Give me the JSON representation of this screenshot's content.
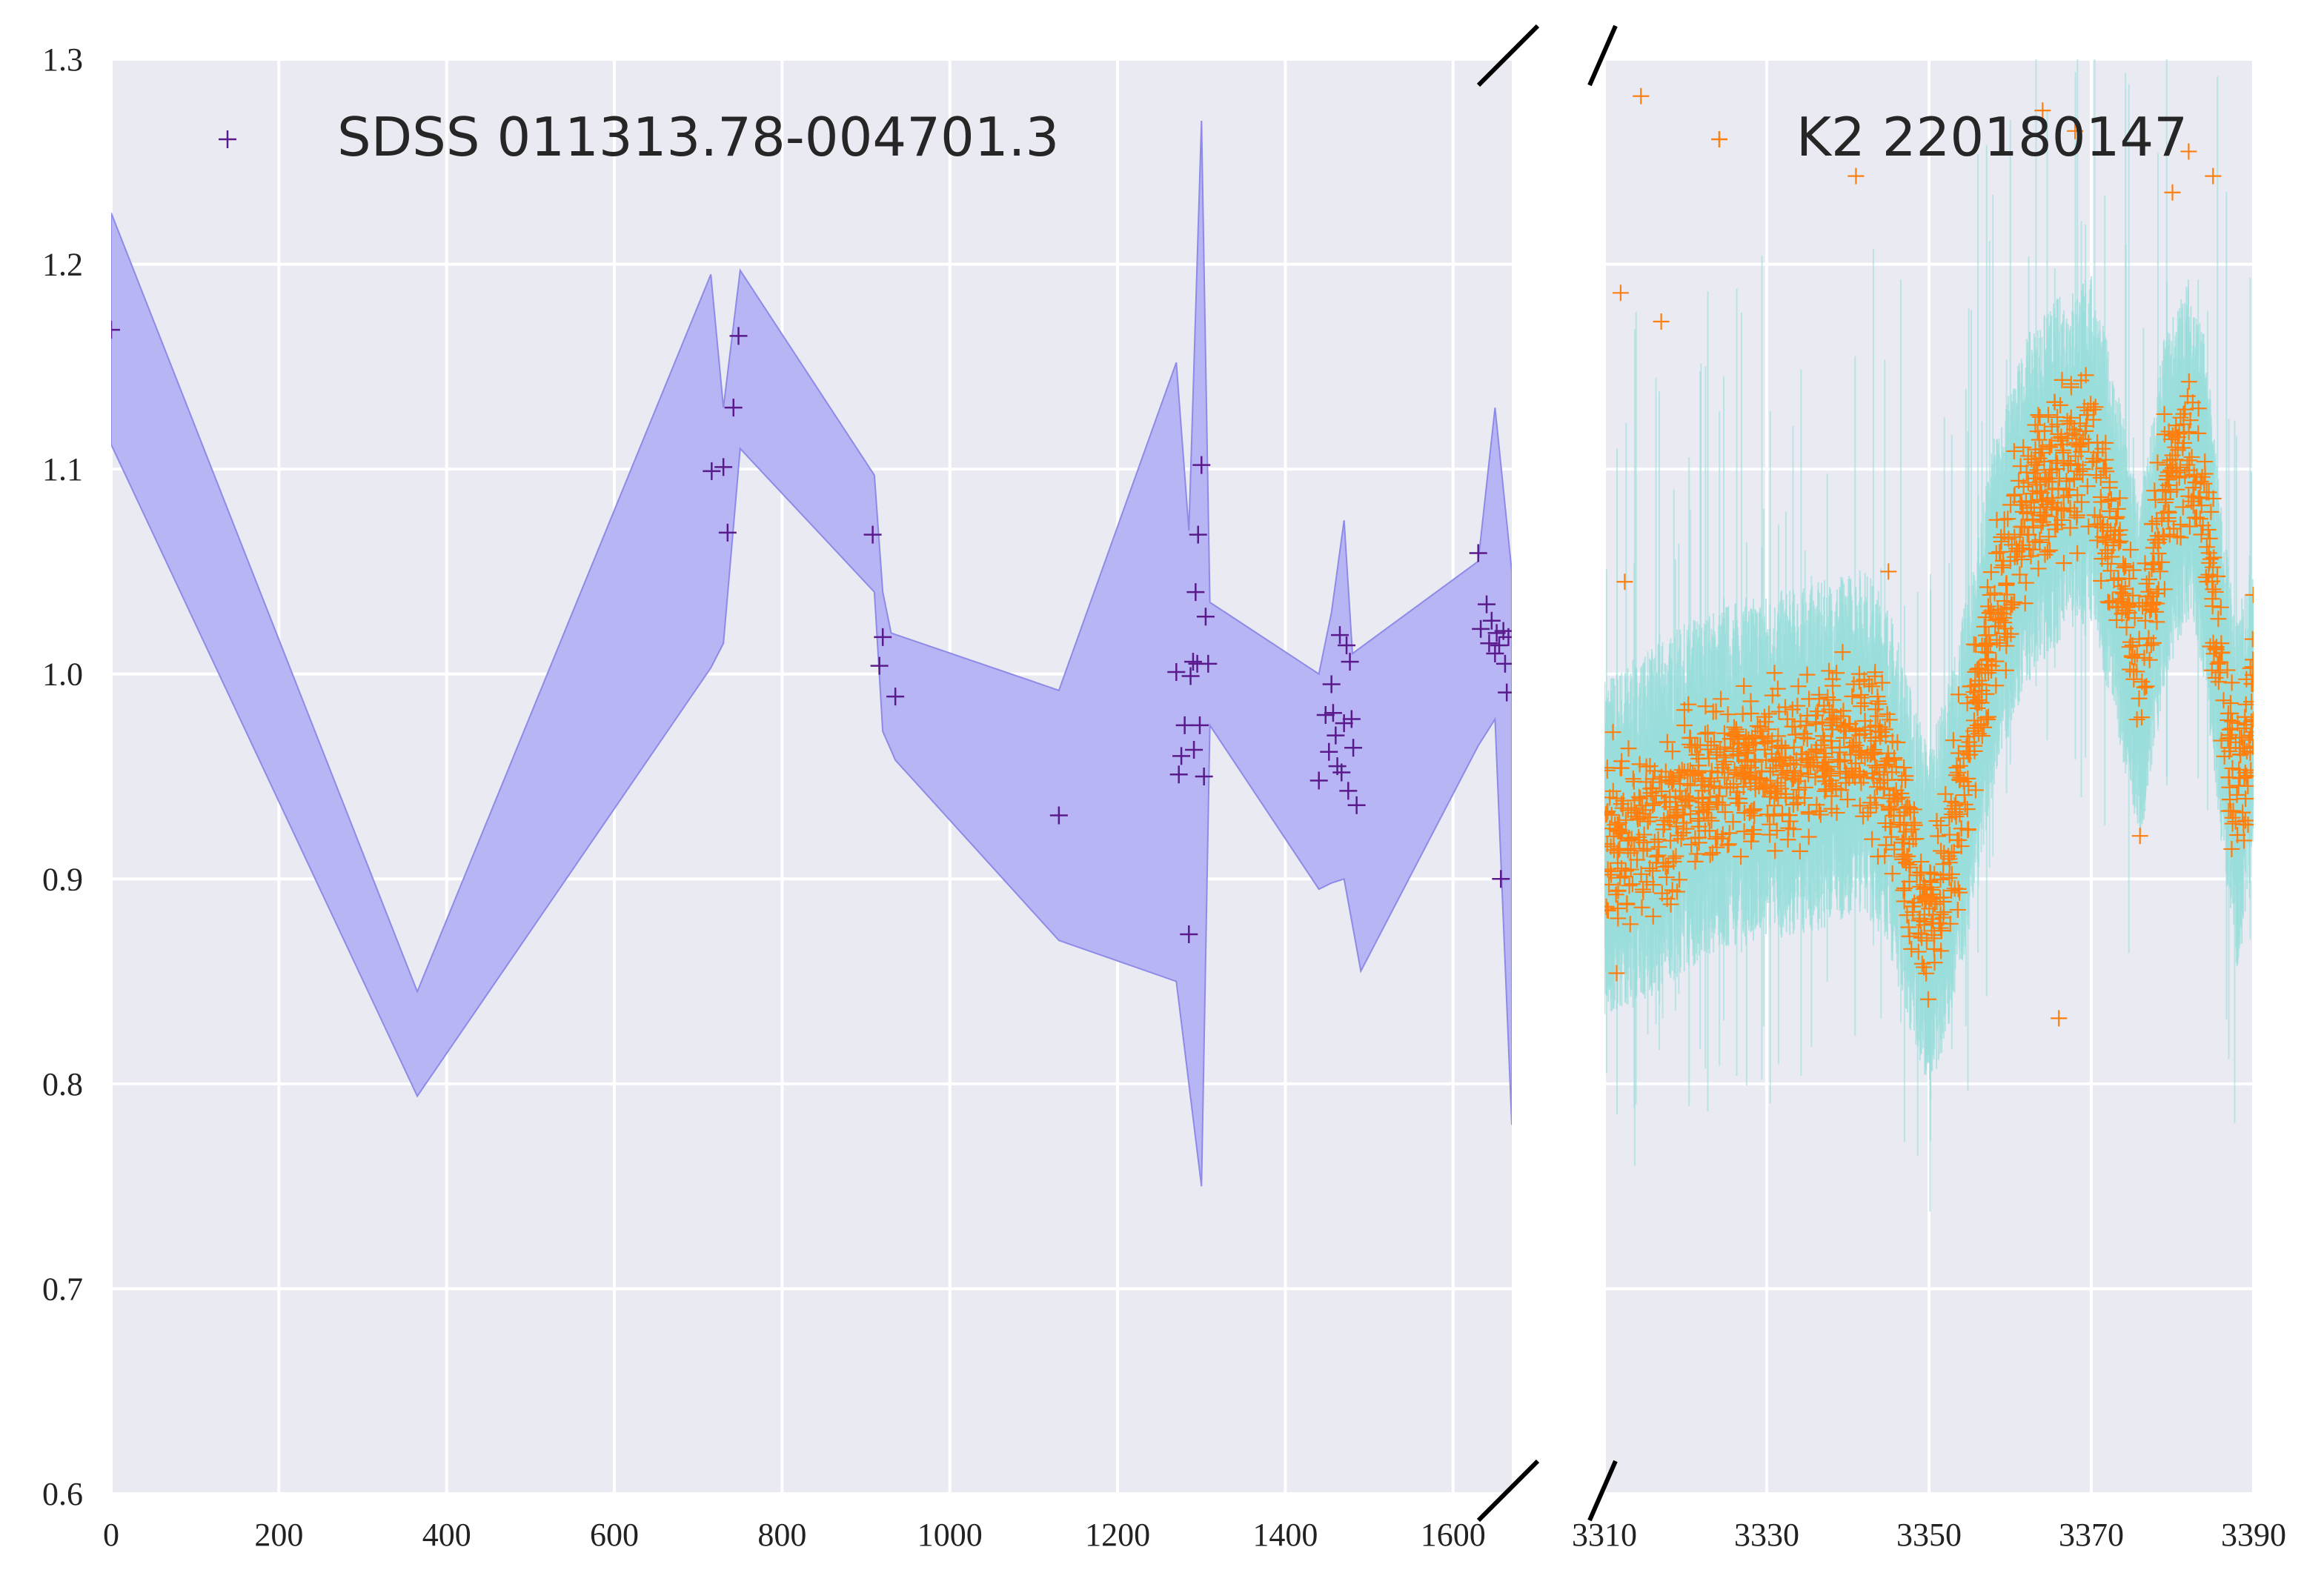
{
  "chart_data": {
    "type": "scatter",
    "ylim": [
      0.6,
      1.3
    ],
    "yticks": [
      "0.6",
      "0.7",
      "0.8",
      "0.9",
      "1.0",
      "1.1",
      "1.2",
      "1.3"
    ],
    "grid": true,
    "axis_break": true,
    "panels": [
      {
        "id": "left",
        "xlim": [
          0,
          1670
        ],
        "xticks": [
          "0",
          "200",
          "400",
          "600",
          "800",
          "1000",
          "1200",
          "1400",
          "1600"
        ],
        "legend": {
          "label": "SDSS 011313.78-004701.3",
          "position": "top-left"
        },
        "series": {
          "name": "SDSS 011313.78-004701.3",
          "marker": "+",
          "color": "#5b1a8c",
          "band_color": "#b7b5f3",
          "band_edge": "#8e8ae8",
          "points": [
            [
              0,
              1.168
            ],
            [
              716,
              1.099
            ],
            [
              730,
              1.101
            ],
            [
              735,
              1.069
            ],
            [
              742,
              1.13
            ],
            [
              748,
              1.165
            ],
            [
              908,
              1.068
            ],
            [
              916,
              1.004
            ],
            [
              920,
              1.018
            ],
            [
              935,
              0.989
            ],
            [
              1130,
              0.931
            ],
            [
              1270,
              1.001
            ],
            [
              1273,
              0.951
            ],
            [
              1276,
              0.96
            ],
            [
              1280,
              0.975
            ],
            [
              1285,
              0.873
            ],
            [
              1287,
              0.999
            ],
            [
              1290,
              1.006
            ],
            [
              1291,
              0.963
            ],
            [
              1293,
              1.04
            ],
            [
              1295,
              1.005
            ],
            [
              1296,
              1.068
            ],
            [
              1298,
              0.975
            ],
            [
              1300,
              1.102
            ],
            [
              1303,
              0.95
            ],
            [
              1305,
              1.028
            ],
            [
              1308,
              1.005
            ],
            [
              1440,
              0.948
            ],
            [
              1448,
              0.98
            ],
            [
              1452,
              0.962
            ],
            [
              1455,
              0.995
            ],
            [
              1457,
              0.981
            ],
            [
              1460,
              0.97
            ],
            [
              1462,
              0.955
            ],
            [
              1465,
              1.019
            ],
            [
              1467,
              0.952
            ],
            [
              1470,
              0.976
            ],
            [
              1473,
              1.014
            ],
            [
              1475,
              0.943
            ],
            [
              1477,
              1.006
            ],
            [
              1479,
              0.978
            ],
            [
              1481,
              0.964
            ],
            [
              1485,
              0.936
            ],
            [
              1630,
              1.059
            ],
            [
              1633,
              1.022
            ],
            [
              1640,
              1.034
            ],
            [
              1643,
              1.015
            ],
            [
              1646,
              1.026
            ],
            [
              1650,
              1.01
            ],
            [
              1652,
              1.02
            ],
            [
              1655,
              1.014
            ],
            [
              1657,
              0.9
            ],
            [
              1660,
              1.021
            ],
            [
              1662,
              1.005
            ],
            [
              1664,
              0.991
            ],
            [
              1666,
              1.018
            ]
          ],
          "band_upper": [
            [
              0,
              1.225
            ],
            [
              365,
              0.845
            ],
            [
              715,
              1.195
            ],
            [
              730,
              1.13
            ],
            [
              750,
              1.197
            ],
            [
              910,
              1.097
            ],
            [
              920,
              1.04
            ],
            [
              930,
              1.02
            ],
            [
              1130,
              0.992
            ],
            [
              1270,
              1.152
            ],
            [
              1285,
              1.07
            ],
            [
              1300,
              1.27
            ],
            [
              1310,
              1.035
            ],
            [
              1440,
              1.0
            ],
            [
              1455,
              1.03
            ],
            [
              1470,
              1.075
            ],
            [
              1480,
              1.01
            ],
            [
              1630,
              1.055
            ],
            [
              1650,
              1.13
            ],
            [
              1670,
              1.05
            ]
          ],
          "band_lower": [
            [
              1670,
              0.78
            ],
            [
              1650,
              0.978
            ],
            [
              1630,
              0.965
            ],
            [
              1490,
              0.855
            ],
            [
              1470,
              0.9
            ],
            [
              1455,
              0.898
            ],
            [
              1440,
              0.895
            ],
            [
              1310,
              0.975
            ],
            [
              1300,
              0.75
            ],
            [
              1285,
              0.8
            ],
            [
              1270,
              0.85
            ],
            [
              1130,
              0.87
            ],
            [
              935,
              0.958
            ],
            [
              920,
              0.972
            ],
            [
              910,
              1.04
            ],
            [
              750,
              1.11
            ],
            [
              730,
              1.015
            ],
            [
              715,
              1.003
            ],
            [
              365,
              0.794
            ],
            [
              0,
              1.112
            ]
          ]
        }
      },
      {
        "id": "right",
        "xlim": [
          3310,
          3390
        ],
        "xticks": [
          "3310",
          "3330",
          "3350",
          "3370",
          "3390"
        ],
        "legend": {
          "label": "K2 220180147",
          "position": "top-right"
        },
        "series": {
          "name": "K2 220180147",
          "marker": "+",
          "color": "#ff7f0e",
          "band_color": "#9adedc",
          "trend": [
            [
              3310,
              0.915
            ],
            [
              3315,
              0.925
            ],
            [
              3320,
              0.94
            ],
            [
              3325,
              0.95
            ],
            [
              3330,
              0.955
            ],
            [
              3335,
              0.958
            ],
            [
              3340,
              0.965
            ],
            [
              3342,
              0.968
            ],
            [
              3345,
              0.95
            ],
            [
              3348,
              0.905
            ],
            [
              3350,
              0.88
            ],
            [
              3352,
              0.905
            ],
            [
              3355,
              0.96
            ],
            [
              3358,
              1.03
            ],
            [
              3362,
              1.08
            ],
            [
              3366,
              1.1
            ],
            [
              3370,
              1.11
            ],
            [
              3373,
              1.06
            ],
            [
              3376,
              1.0
            ],
            [
              3379,
              1.08
            ],
            [
              3382,
              1.11
            ],
            [
              3384,
              1.08
            ],
            [
              3386,
              1.0
            ],
            [
              3388,
              0.94
            ],
            [
              3390,
              0.985
            ]
          ],
          "outliers": [
            [
              3314.5,
              1.282
            ],
            [
              3312,
              1.186
            ],
            [
              3317,
              1.172
            ],
            [
              3341,
              1.243
            ],
            [
              3366,
              0.832
            ],
            [
              3368,
              1.265
            ],
            [
              3364,
              1.275
            ],
            [
              3312.5,
              1.045
            ],
            [
              3311.5,
              0.854
            ],
            [
              3345,
              1.05
            ],
            [
              3382,
              1.255
            ],
            [
              3376,
              0.921
            ],
            [
              3385,
              1.243
            ],
            [
              3380,
              1.235
            ]
          ]
        }
      }
    ]
  }
}
